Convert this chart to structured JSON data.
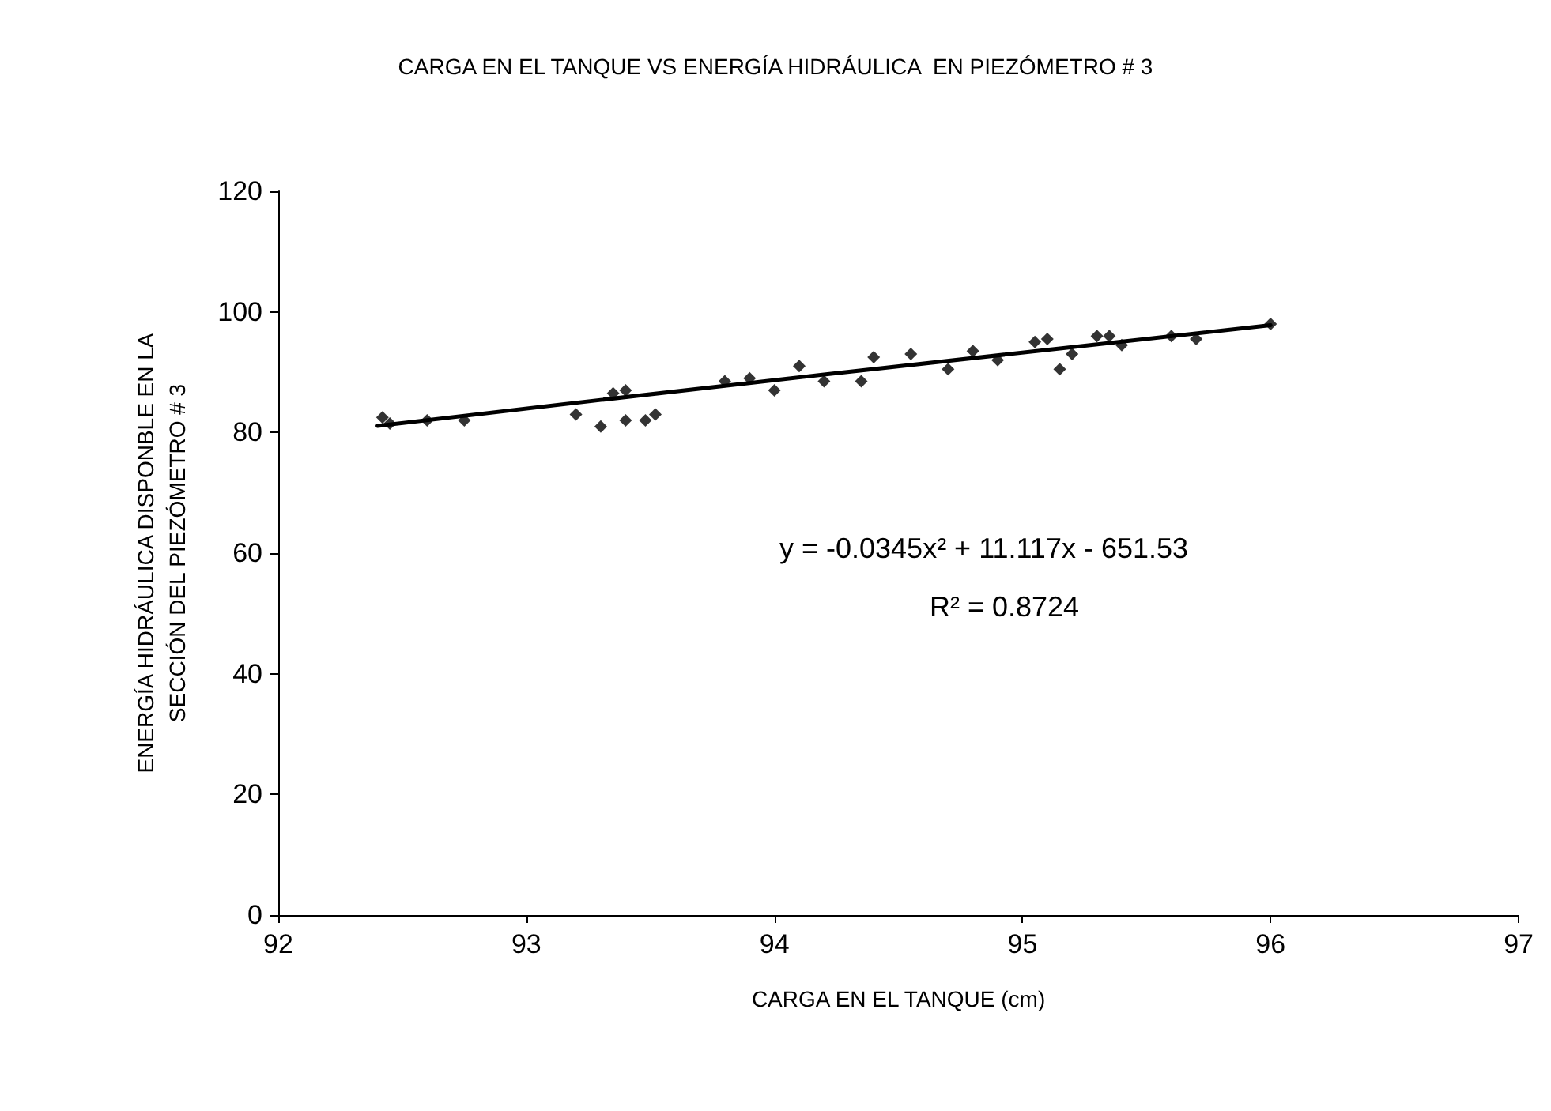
{
  "chart_data": {
    "type": "scatter",
    "title": "CARGA EN EL TANQUE VS ENERGÍA HIDRÁULICA  EN PIEZÓMETRO # 3",
    "xlabel": "CARGA EN EL TANQUE (cm)",
    "ylabel": "ENERGÍA HIDRÁULICA DISPONBLE EN LA\nSECCIÓN DEL PIEZÓMETRO # 3",
    "x": [
      92.42,
      92.45,
      92.6,
      92.75,
      93.2,
      93.3,
      93.35,
      93.4,
      93.4,
      93.48,
      93.52,
      93.8,
      93.9,
      94.0,
      94.1,
      94.2,
      94.35,
      94.4,
      94.55,
      94.7,
      94.8,
      94.9,
      95.05,
      95.1,
      95.15,
      95.2,
      95.3,
      95.35,
      95.4,
      95.6,
      95.7,
      96.0
    ],
    "series": [
      {
        "color": "#000000",
        "marker": "diamond",
        "values": [
          82.5,
          81.5,
          82,
          82,
          83,
          81,
          86.5,
          87,
          82,
          82,
          83,
          88.5,
          89,
          87,
          91,
          88.5,
          88.5,
          92.5,
          93,
          90.5,
          93.5,
          92,
          95,
          95.5,
          90.5,
          93,
          96,
          96,
          94.5,
          96,
          95.5,
          98
        ]
      },
      {
        "type": "line",
        "color": "#000000",
        "marker": "none",
        "line_style": "solid",
        "x": [
          92.4,
          93.3,
          94.2,
          95.1,
          96.0
        ],
        "values": [
          81.1,
          85.4,
          89.6,
          93.7,
          97.8
        ]
      }
    ],
    "annotations": [
      "y = -0.0345x² + 11.117x - 651.53",
      "R² = 0.8724"
    ],
    "xlim": [
      92,
      97
    ],
    "xticks": [
      92,
      93,
      94,
      95,
      96,
      97
    ],
    "ylim": [
      0,
      120
    ],
    "yticks": [
      0,
      20,
      40,
      60,
      80,
      100,
      120
    ],
    "grid": false
  }
}
